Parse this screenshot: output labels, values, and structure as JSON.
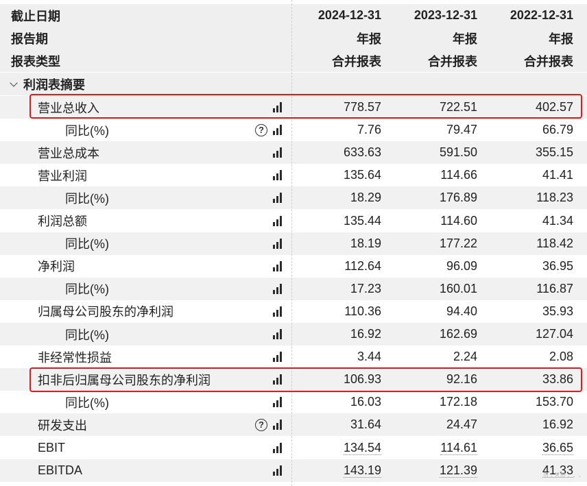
{
  "header": {
    "rows": [
      {
        "label": "截止日期",
        "values": [
          "2024-12-31",
          "2023-12-31",
          "2022-12-31"
        ]
      },
      {
        "label": "报告期",
        "values": [
          "年报",
          "年报",
          "年报"
        ]
      },
      {
        "label": "报表类型",
        "values": [
          "合并报表",
          "合并报表",
          "合并报表"
        ]
      }
    ]
  },
  "section": {
    "label": "利润表摘要"
  },
  "rows": [
    {
      "label": "营业总收入",
      "values": [
        "778.57",
        "722.51",
        "402.57"
      ],
      "help": false
    },
    {
      "label": "同比(%)",
      "values": [
        "7.76",
        "79.47",
        "66.79"
      ],
      "help": true
    },
    {
      "label": "营业总成本",
      "values": [
        "633.63",
        "591.50",
        "355.15"
      ],
      "help": false
    },
    {
      "label": "营业利润",
      "values": [
        "135.64",
        "114.66",
        "41.41"
      ],
      "help": false
    },
    {
      "label": "同比(%)",
      "values": [
        "18.29",
        "176.89",
        "118.23"
      ],
      "help": false
    },
    {
      "label": "利润总额",
      "values": [
        "135.44",
        "114.60",
        "41.34"
      ],
      "help": false
    },
    {
      "label": "同比(%)",
      "values": [
        "18.19",
        "177.22",
        "118.42"
      ],
      "help": false
    },
    {
      "label": "净利润",
      "values": [
        "112.64",
        "96.09",
        "36.95"
      ],
      "help": false
    },
    {
      "label": "同比(%)",
      "values": [
        "17.23",
        "160.01",
        "116.87"
      ],
      "help": false
    },
    {
      "label": "归属母公司股东的净利润",
      "values": [
        "110.36",
        "94.40",
        "35.93"
      ],
      "help": false
    },
    {
      "label": "同比(%)",
      "values": [
        "16.92",
        "162.69",
        "127.04"
      ],
      "help": false
    },
    {
      "label": "非经常性损益",
      "values": [
        "3.44",
        "2.24",
        "2.08"
      ],
      "help": false
    },
    {
      "label": "扣非后归属母公司股东的净利润",
      "values": [
        "106.93",
        "92.16",
        "33.86"
      ],
      "help": false
    },
    {
      "label": "同比(%)",
      "values": [
        "16.03",
        "172.18",
        "153.70"
      ],
      "help": false
    },
    {
      "label": "研发支出",
      "values": [
        "31.64",
        "24.47",
        "16.92"
      ],
      "help": true
    },
    {
      "label": "EBIT",
      "values": [
        "134.54",
        "114.61",
        "36.65"
      ],
      "help": false
    },
    {
      "label": "EBITDA",
      "values": [
        "143.19",
        "121.39",
        "41.33"
      ],
      "help": false
    }
  ],
  "icons": {
    "chart": "bar-chart-icon",
    "help": "help-circle-icon",
    "collapse": "chevron-down-icon"
  },
  "highlight_color": "#e01c1c",
  "watermark": "m.xm..."
}
